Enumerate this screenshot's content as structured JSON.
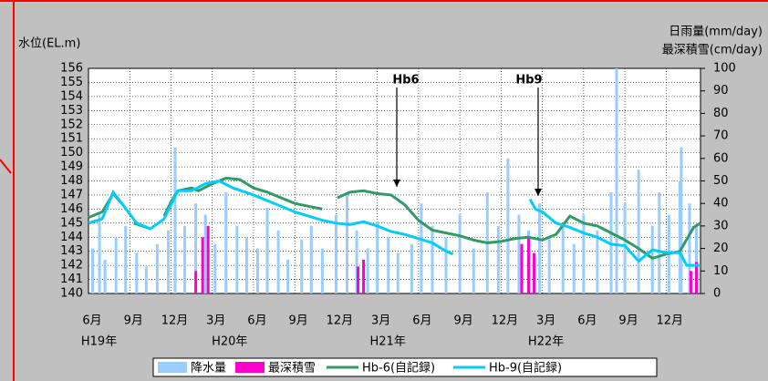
{
  "chart_data": {
    "type": "line",
    "y_label": "水位(EL.m)",
    "y2_label": [
      "日雨量(mm/day)",
      "最深積雪(cm/day)"
    ],
    "xlim": [
      0,
      44.5
    ],
    "xticks": [
      {
        "value": 0,
        "label": "6月"
      },
      {
        "value": 3,
        "label": "9月"
      },
      {
        "value": 6,
        "label": "12月"
      },
      {
        "value": 9,
        "label": "3月"
      },
      {
        "value": 12,
        "label": "6月"
      },
      {
        "value": 15,
        "label": "9月"
      },
      {
        "value": 18,
        "label": "12月"
      },
      {
        "value": 21,
        "label": "3月"
      },
      {
        "value": 24,
        "label": "6月"
      },
      {
        "value": 27,
        "label": "9月"
      },
      {
        "value": 30,
        "label": "12月"
      },
      {
        "value": 33,
        "label": "3月"
      },
      {
        "value": 36,
        "label": "6月"
      },
      {
        "value": 39,
        "label": "9月"
      },
      {
        "value": 42,
        "label": "12月"
      }
    ],
    "year_labels": [
      {
        "value": 0.5,
        "label": "H19年"
      },
      {
        "value": 10,
        "label": "H20年"
      },
      {
        "value": 21.5,
        "label": "H21年"
      },
      {
        "value": 33,
        "label": "H22年"
      }
    ],
    "ylim": [
      140,
      156
    ],
    "yticks": [
      140,
      141,
      142,
      143,
      144,
      145,
      146,
      147,
      148,
      149,
      150,
      151,
      152,
      153,
      154,
      155,
      156
    ],
    "y2lim": [
      0,
      100
    ],
    "y2ticks": [
      0,
      10,
      20,
      30,
      40,
      50,
      60,
      70,
      80,
      90,
      100
    ],
    "grid": true,
    "series": [
      {
        "name": "降水量",
        "type": "bar",
        "axis": "y2",
        "color": "#99ccff",
        "x": [
          0.3,
          0.8,
          1.2,
          2.0,
          2.7,
          3.5,
          4.2,
          5.0,
          5.8,
          6.3,
          7.0,
          7.8,
          8.5,
          9.2,
          10.0,
          10.8,
          11.5,
          12.3,
          13.0,
          13.8,
          14.5,
          15.5,
          16.2,
          17.0,
          18.0,
          18.8,
          19.5,
          20.3,
          21.0,
          21.8,
          22.5,
          23.5,
          24.2,
          25.0,
          26.0,
          27.0,
          28.0,
          29.0,
          29.8,
          30.5,
          31.3,
          32.0,
          32.8,
          33.5,
          34.5,
          35.3,
          36.0,
          37.0,
          38.0,
          38.4,
          39.0,
          40.0,
          41.0,
          41.5,
          42.2,
          43.0,
          43.1,
          43.7,
          44.2
        ],
        "values": [
          20,
          35,
          15,
          25,
          30,
          18,
          12,
          22,
          28,
          65,
          30,
          40,
          35,
          22,
          45,
          30,
          25,
          20,
          38,
          28,
          15,
          24,
          30,
          20,
          35,
          45,
          28,
          20,
          32,
          25,
          18,
          22,
          40,
          30,
          25,
          35,
          20,
          45,
          30,
          60,
          35,
          28,
          40,
          25,
          30,
          22,
          35,
          28,
          45,
          100,
          40,
          55,
          30,
          45,
          35,
          50,
          65,
          40,
          30
        ]
      },
      {
        "name": "最深積雪",
        "type": "bar",
        "axis": "y2",
        "color": "#ff00cc",
        "x": [
          7.8,
          8.3,
          8.7,
          19.6,
          20.0,
          31.5,
          32.0,
          32.4,
          43.8,
          44.2
        ],
        "values": [
          10,
          25,
          30,
          12,
          15,
          22,
          25,
          18,
          10,
          14
        ]
      },
      {
        "name": "Hb-6(自記録)",
        "type": "line",
        "color": "#339966",
        "x": [
          0,
          1,
          1.8,
          2.5,
          3,
          3.3,
          4.5,
          5,
          5.5,
          6,
          6.5,
          7.5,
          8,
          9,
          10,
          11,
          12,
          13,
          14,
          15,
          16,
          17,
          18,
          18.1,
          19,
          20,
          21,
          22,
          23,
          24,
          25,
          26,
          27,
          28,
          29,
          30,
          31,
          32,
          33,
          34,
          35,
          36,
          37,
          38,
          39,
          40,
          41,
          42,
          43,
          44,
          44.5
        ],
        "values": [
          145.4,
          145.8,
          147.1,
          146.3,
          null,
          145.0,
          144.6,
          null,
          145.5,
          146.5,
          147.3,
          147.5,
          147.3,
          147.8,
          148.2,
          148.1,
          147.5,
          147.2,
          146.8,
          146.4,
          146.2,
          146.0,
          null,
          146.8,
          147.2,
          147.3,
          147.1,
          147.0,
          146.3,
          145.2,
          144.5,
          144.3,
          144.1,
          143.8,
          143.6,
          143.7,
          143.9,
          144.0,
          143.8,
          144.2,
          145.5,
          145.0,
          144.8,
          144.3,
          143.8,
          143.2,
          142.5,
          142.8,
          143.0,
          144.7,
          145.0
        ]
      },
      {
        "name": "Hb-9(自記録)",
        "type": "line",
        "color": "#00ccff",
        "x": [
          0,
          1,
          1.8,
          2.5,
          3.5,
          4.5,
          5.5,
          6.5,
          7.5,
          8.5,
          9.5,
          10.5,
          12,
          13,
          14,
          15,
          16,
          17,
          18,
          19,
          20,
          21,
          22,
          23,
          24,
          25,
          26,
          26.5,
          30,
          32.1,
          32.5,
          33,
          34,
          35,
          36,
          37,
          38,
          39,
          40,
          41,
          42,
          43,
          43.5,
          44.5
        ],
        "values": [
          145.0,
          145.3,
          147.2,
          146.3,
          145.0,
          144.6,
          145.3,
          147.3,
          147.3,
          147.8,
          148.0,
          147.5,
          147.0,
          146.6,
          146.2,
          145.8,
          145.5,
          145.2,
          145.0,
          144.9,
          145.1,
          144.8,
          144.4,
          144.2,
          143.9,
          143.6,
          143.0,
          142.8,
          null,
          146.7,
          146.0,
          145.8,
          145.0,
          144.7,
          144.3,
          144.0,
          143.5,
          143.4,
          142.3,
          143.1,
          142.9,
          142.9,
          142.0,
          142.0
        ]
      }
    ],
    "annotations": [
      "Hb6",
      "Hb9"
    ]
  }
}
